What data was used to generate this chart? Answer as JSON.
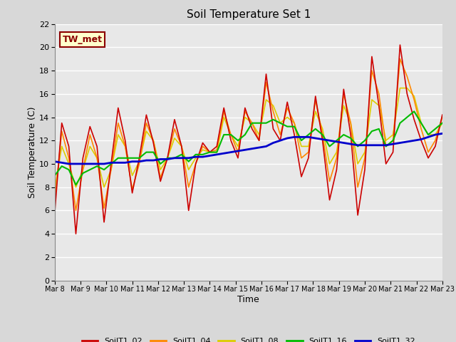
{
  "title": "Soil Temperature Set 1",
  "xlabel": "Time",
  "ylabel": "Soil Temperature (C)",
  "ylim": [
    0,
    22
  ],
  "yticks": [
    0,
    2,
    4,
    6,
    8,
    10,
    12,
    14,
    16,
    18,
    20,
    22
  ],
  "background_color": "#d8d8d8",
  "plot_bg_color": "#e8e8e8",
  "grid_color": "#ffffff",
  "annotation_text": "TW_met",
  "annotation_color": "#8b0000",
  "annotation_bg": "#ffffcc",
  "series": {
    "SoilT1_02": {
      "color": "#cc0000",
      "linewidth": 1.2
    },
    "SoilT1_04": {
      "color": "#ff8800",
      "linewidth": 1.2
    },
    "SoilT1_08": {
      "color": "#ddcc00",
      "linewidth": 1.2
    },
    "SoilT1_16": {
      "color": "#00bb00",
      "linewidth": 1.5
    },
    "SoilT1_32": {
      "color": "#0000cc",
      "linewidth": 2.0
    }
  },
  "xtick_labels": [
    "Mar 8",
    "Mar 9",
    "Mar 10",
    "Mar 11",
    "Mar 12",
    "Mar 13",
    "Mar 14",
    "Mar 15",
    "Mar 16",
    "Mar 17",
    "Mar 18",
    "Mar 19",
    "Mar 20",
    "Mar 21",
    "Mar 22",
    "Mar 23"
  ],
  "SoilT1_02": [
    5.8,
    13.5,
    11.5,
    4.0,
    10.5,
    13.2,
    11.5,
    5.0,
    10.0,
    14.8,
    12.0,
    7.5,
    10.5,
    14.2,
    11.8,
    8.5,
    10.5,
    13.8,
    11.5,
    6.0,
    10.0,
    11.8,
    11.0,
    11.5,
    14.8,
    12.0,
    10.5,
    14.8,
    13.0,
    12.0,
    17.7,
    13.0,
    12.0,
    15.3,
    12.5,
    8.9,
    10.5,
    15.8,
    12.0,
    6.9,
    9.5,
    16.4,
    12.5,
    5.6,
    9.5,
    19.2,
    15.0,
    10.0,
    11.0,
    20.2,
    16.0,
    13.8,
    12.0,
    10.5,
    11.5,
    14.2
  ],
  "SoilT1_04": [
    6.8,
    12.8,
    10.5,
    6.0,
    9.5,
    12.5,
    10.5,
    6.2,
    9.5,
    13.5,
    11.5,
    7.8,
    10.0,
    13.5,
    12.0,
    8.8,
    10.5,
    13.0,
    11.5,
    8.0,
    10.0,
    11.5,
    11.0,
    11.2,
    14.5,
    12.5,
    11.0,
    14.5,
    13.5,
    12.0,
    17.0,
    14.5,
    12.5,
    14.8,
    13.5,
    10.5,
    11.0,
    15.5,
    12.5,
    8.5,
    10.5,
    16.0,
    13.5,
    8.0,
    10.5,
    18.0,
    16.0,
    11.5,
    12.0,
    19.0,
    17.5,
    15.5,
    13.0,
    11.0,
    12.0,
    14.0
  ],
  "SoilT1_08": [
    7.8,
    11.5,
    10.0,
    8.0,
    9.5,
    11.5,
    10.5,
    8.0,
    9.5,
    12.5,
    11.5,
    9.0,
    10.2,
    12.8,
    12.0,
    9.5,
    10.5,
    12.2,
    11.5,
    9.5,
    10.5,
    11.2,
    11.0,
    11.0,
    14.0,
    12.5,
    11.5,
    14.0,
    13.5,
    12.5,
    15.5,
    15.0,
    13.5,
    14.0,
    13.5,
    11.5,
    11.5,
    14.5,
    13.0,
    10.0,
    11.0,
    15.0,
    13.5,
    10.0,
    11.0,
    15.5,
    15.0,
    12.0,
    12.5,
    16.5,
    16.5,
    15.8,
    13.5,
    12.5,
    12.5,
    13.5
  ],
  "SoilT1_16": [
    9.0,
    9.8,
    9.5,
    8.2,
    9.2,
    9.5,
    9.8,
    9.5,
    10.0,
    10.5,
    10.5,
    10.5,
    10.5,
    11.0,
    11.0,
    10.0,
    10.5,
    10.5,
    10.8,
    10.2,
    10.8,
    10.8,
    11.0,
    11.0,
    12.5,
    12.5,
    12.0,
    12.5,
    13.5,
    13.5,
    13.5,
    13.8,
    13.5,
    13.2,
    13.2,
    12.0,
    12.5,
    13.0,
    12.5,
    11.5,
    12.0,
    12.5,
    12.2,
    11.5,
    12.0,
    12.8,
    13.0,
    11.5,
    12.0,
    13.5,
    14.0,
    14.5,
    13.5,
    12.5,
    13.0,
    13.5
  ],
  "SoilT1_32": [
    10.2,
    10.1,
    10.0,
    10.0,
    10.0,
    10.0,
    10.0,
    10.0,
    10.1,
    10.1,
    10.1,
    10.2,
    10.2,
    10.3,
    10.3,
    10.4,
    10.4,
    10.5,
    10.5,
    10.5,
    10.6,
    10.6,
    10.7,
    10.8,
    10.9,
    11.0,
    11.1,
    11.2,
    11.3,
    11.4,
    11.5,
    11.8,
    12.0,
    12.2,
    12.3,
    12.3,
    12.3,
    12.2,
    12.1,
    12.0,
    11.9,
    11.8,
    11.7,
    11.6,
    11.6,
    11.6,
    11.6,
    11.6,
    11.7,
    11.8,
    11.9,
    12.0,
    12.1,
    12.3,
    12.5,
    12.6
  ]
}
